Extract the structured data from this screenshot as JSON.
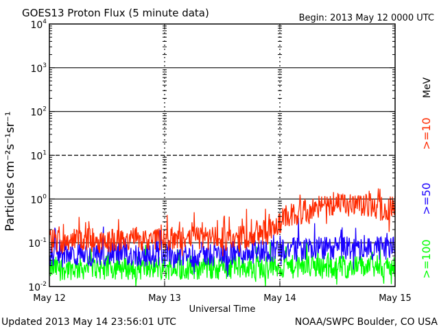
{
  "chart_data": {
    "type": "line",
    "title": "GOES13 Proton Flux (5 minute data)",
    "begin_label": "Begin: 2013 May 12 0000 UTC",
    "ylabel": "Particles cm⁻²s⁻¹sr⁻¹",
    "xlabel": "Universal Time",
    "y_scale": "log",
    "ylim": [
      0.01,
      10000
    ],
    "y_ticks": [
      {
        "base": "10",
        "exp": "-2",
        "value": 0.01
      },
      {
        "base": "10",
        "exp": "-1",
        "value": 0.1
      },
      {
        "base": "10",
        "exp": "0",
        "value": 1
      },
      {
        "base": "10",
        "exp": "1",
        "value": 10
      },
      {
        "base": "10",
        "exp": "2",
        "value": 100
      },
      {
        "base": "10",
        "exp": "3",
        "value": 1000
      },
      {
        "base": "10",
        "exp": "4",
        "value": 10000
      }
    ],
    "x_ticks": [
      {
        "label": "May 12",
        "day": 0
      },
      {
        "label": "May 13",
        "day": 1
      },
      {
        "label": "May 14",
        "day": 2
      },
      {
        "label": "May 15",
        "day": 3
      }
    ],
    "xlim_days": [
      0,
      3
    ],
    "threshold_lines": [
      {
        "value": 10,
        "style": "dashed"
      },
      {
        "value": 0.1,
        "style": "solid"
      }
    ],
    "mev_label": "MeV",
    "series": [
      {
        "name": ">=10",
        "color": "#ff2a00",
        "x_days": [
          0,
          0.25,
          0.5,
          0.75,
          1.0,
          1.25,
          1.5,
          1.75,
          1.95,
          2.05,
          2.15,
          2.3,
          2.4,
          2.5,
          2.6,
          2.75,
          2.9,
          3.0
        ],
        "y": [
          0.11,
          0.12,
          0.11,
          0.12,
          0.12,
          0.13,
          0.12,
          0.14,
          0.2,
          0.4,
          0.45,
          0.6,
          0.7,
          0.75,
          0.7,
          0.7,
          0.6,
          0.65
        ]
      },
      {
        "name": ">=50",
        "color": "#1a00ff",
        "x_days": [
          0,
          0.5,
          1.0,
          1.5,
          2.0,
          2.5,
          3.0
        ],
        "y": [
          0.05,
          0.055,
          0.05,
          0.055,
          0.07,
          0.075,
          0.075
        ]
      },
      {
        "name": ">=100",
        "color": "#00ff00",
        "x_days": [
          0,
          0.5,
          1.0,
          1.5,
          2.0,
          2.5,
          3.0
        ],
        "y": [
          0.026,
          0.027,
          0.026,
          0.027,
          0.028,
          0.028,
          0.028
        ]
      }
    ]
  },
  "footer": {
    "updated": "Updated 2013 May 14 23:56:01 UTC",
    "credit": "NOAA/SWPC Boulder, CO USA"
  }
}
